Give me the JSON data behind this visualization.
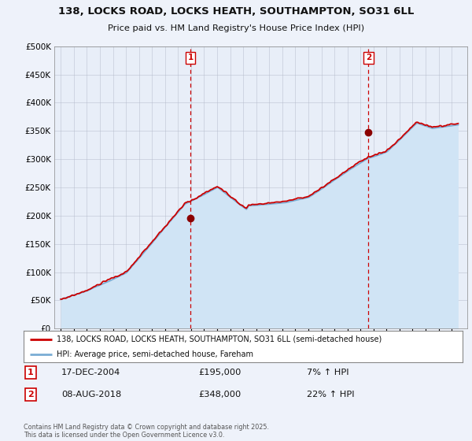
{
  "title_line1": "138, LOCKS ROAD, LOCKS HEATH, SOUTHAMPTON, SO31 6LL",
  "title_line2": "Price paid vs. HM Land Registry's House Price Index (HPI)",
  "legend_entry1": "138, LOCKS ROAD, LOCKS HEATH, SOUTHAMPTON, SO31 6LL (semi-detached house)",
  "legend_entry2": "HPI: Average price, semi-detached house, Fareham",
  "annotation1_label": "1",
  "annotation1_date": "17-DEC-2004",
  "annotation1_price": "£195,000",
  "annotation1_change": "7% ↑ HPI",
  "annotation2_label": "2",
  "annotation2_date": "08-AUG-2018",
  "annotation2_price": "£348,000",
  "annotation2_change": "22% ↑ HPI",
  "footer": "Contains HM Land Registry data © Crown copyright and database right 2025.\nThis data is licensed under the Open Government Licence v3.0.",
  "sale1_year": 2004.96,
  "sale1_price": 195000,
  "sale2_year": 2018.62,
  "sale2_price": 348000,
  "hpi_line_color": "#7aadd4",
  "hpi_fill_color": "#d0e4f5",
  "price_color": "#cc0000",
  "sale_dot_color": "#8b0000",
  "vline_color": "#cc0000",
  "background_color": "#eef2fa",
  "plot_bg_color": "#e8eef8",
  "ylim": [
    0,
    500000
  ],
  "xlim_start": 1994.5,
  "xlim_end": 2026.2
}
